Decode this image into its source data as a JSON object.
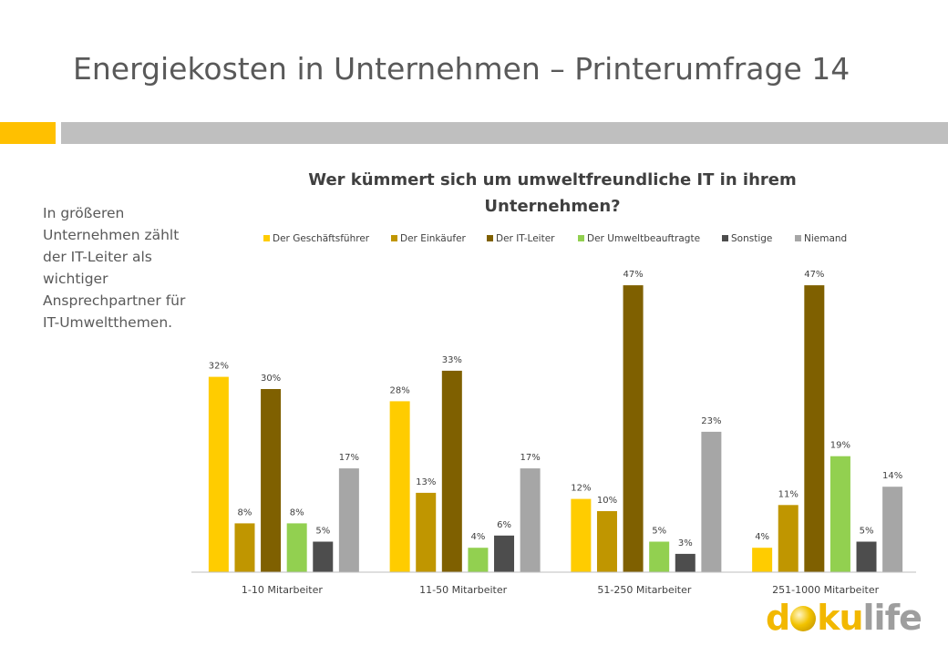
{
  "slide": {
    "title": "Energiekosten in Unternehmen – Printerumfrage 14",
    "side_text": "In größeren Unternehmen zählt der IT-Leiter als wichtiger Ansprechpartner für IT-Umweltthemen.",
    "accent_color": "#FFC000",
    "band_color": "#BFBFBF"
  },
  "logo": {
    "d": "d",
    "ku": "ku",
    "life": "life",
    "icon": "globe-o-icon"
  },
  "chart_data": {
    "type": "bar",
    "title_line1": "Wer kümmert sich um umweltfreundliche IT in ihrem",
    "title_line2": "Unternehmen?",
    "categories": [
      "1-10 Mitarbeiter",
      "11-50 Mitarbeiter",
      "51-250 Mitarbeiter",
      "251-1000 Mitarbeiter"
    ],
    "series": [
      {
        "name": "Der Geschäftsführer",
        "color": "#FFCC00",
        "values": [
          32,
          28,
          12,
          4
        ]
      },
      {
        "name": "Der Einkäufer",
        "color": "#C09600",
        "values": [
          8,
          13,
          10,
          11
        ]
      },
      {
        "name": "Der IT-Leiter",
        "color": "#7F6000",
        "values": [
          30,
          33,
          47,
          47
        ]
      },
      {
        "name": "Der Umweltbeauftragte",
        "color": "#92D050",
        "values": [
          8,
          4,
          5,
          19
        ]
      },
      {
        "name": "Sonstige",
        "color": "#4D4D4D",
        "values": [
          5,
          6,
          3,
          5
        ]
      },
      {
        "name": "Niemand",
        "color": "#A6A6A6",
        "values": [
          17,
          17,
          23,
          14
        ]
      }
    ],
    "value_suffix": "%",
    "ylim": [
      0,
      50
    ],
    "legend": "top",
    "grid": false
  }
}
